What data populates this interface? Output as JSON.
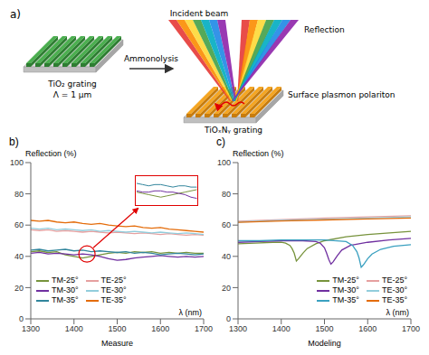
{
  "diagram": {
    "annotation": "a)",
    "left_label": "TiO₂ grating",
    "period_label": "Λ = 1 µm",
    "arrow_label": "Ammonolysis",
    "incident_label": "Incident beam",
    "reflection_label": "Reflection",
    "spp_label": "Surface plasmon polariton",
    "right_label": "TiOₓNᵧ grating"
  },
  "chart_data": [
    {
      "type": "line",
      "annotation": "b)",
      "y_label": "Reflection (%)",
      "x_label": "λ (nm)",
      "subtitle": "Measure",
      "legend": "lower left",
      "grid": false,
      "xlim": [
        1300,
        1700
      ],
      "xticks": [
        1300,
        1400,
        1500,
        1600,
        1700
      ],
      "ylim": [
        0,
        100
      ],
      "yticks": [
        0,
        20,
        40,
        60,
        80,
        100
      ],
      "x": [
        1300,
        1320,
        1340,
        1360,
        1380,
        1400,
        1420,
        1440,
        1460,
        1480,
        1500,
        1520,
        1540,
        1560,
        1580,
        1600,
        1620,
        1640,
        1660,
        1680,
        1700
      ],
      "series": [
        {
          "name": "TM-25°",
          "color": "#77933c",
          "values": [
            43,
            43.5,
            42.5,
            43,
            41,
            40,
            39,
            40,
            41,
            42,
            42.5,
            42,
            43,
            42.5,
            43,
            42,
            42.5,
            42,
            42.5,
            42,
            42
          ]
        },
        {
          "name": "TM-30°",
          "color": "#7030a0",
          "values": [
            42,
            42.5,
            41.5,
            42,
            41.5,
            41,
            41.5,
            41,
            40,
            38.5,
            37.5,
            38,
            39,
            39.5,
            40,
            40.5,
            40,
            39.5,
            40,
            39.5,
            40
          ]
        },
        {
          "name": "TM-35°",
          "color": "#31859c",
          "values": [
            44,
            44.5,
            43.5,
            44,
            44.5,
            43.5,
            44,
            43,
            43.5,
            43,
            42.5,
            43,
            42,
            42.5,
            42,
            41,
            41.5,
            42,
            41.5,
            41,
            41.5
          ]
        },
        {
          "name": "TE-25°",
          "color": "#e6a0a0",
          "values": [
            57,
            56.5,
            57,
            56,
            56.5,
            56,
            55.5,
            56,
            55.5,
            55,
            55.5,
            55,
            54.5,
            55,
            54.5,
            54,
            54.5,
            54,
            53.5,
            54,
            53.5
          ]
        },
        {
          "name": "TE-30°",
          "color": "#92cddc",
          "values": [
            58,
            57.5,
            58,
            57,
            57.5,
            57,
            56.5,
            57,
            56,
            56.5,
            56,
            55.5,
            56,
            55.5,
            55,
            55.5,
            55,
            54.5,
            55,
            54.5,
            54
          ]
        },
        {
          "name": "TE-35°",
          "color": "#e46c0a",
          "values": [
            63,
            62.5,
            63,
            62,
            61.5,
            62,
            61,
            60.5,
            61,
            60,
            59.5,
            59,
            59.5,
            58.5,
            58,
            58.5,
            57.5,
            57,
            56.5,
            56,
            55.5
          ]
        }
      ],
      "inset": {
        "type": "line",
        "tick_labels": false,
        "xlim": [
          1380,
          1480
        ],
        "ylim": [
          36,
          47
        ],
        "x": [
          1380,
          1390,
          1400,
          1410,
          1420,
          1430,
          1440,
          1450,
          1460,
          1470,
          1480
        ],
        "series": [
          {
            "name": "TM-25°",
            "color": "#77933c",
            "values": [
              41,
              40.5,
              40,
              39.5,
              39,
              39.5,
              40,
              40.5,
              41,
              41.5,
              42
            ]
          },
          {
            "name": "TM-30°",
            "color": "#7030a0",
            "values": [
              41.5,
              41,
              41,
              41.5,
              41.5,
              41,
              41,
              40.5,
              40,
              39,
              38.5
            ]
          },
          {
            "name": "TM-35°",
            "color": "#31859c",
            "values": [
              44.5,
              44,
              43.5,
              44,
              44,
              43.5,
              43,
              43.5,
              43.5,
              43,
              43
            ]
          }
        ]
      }
    },
    {
      "type": "line",
      "annotation": "c)",
      "y_label": "Reflection (%)",
      "x_label": "λ (nm)",
      "subtitle": "Modeling",
      "legend": "lower right",
      "grid": false,
      "xlim": [
        1300,
        1700
      ],
      "xticks": [
        1300,
        1400,
        1500,
        1600,
        1700
      ],
      "ylim": [
        0,
        100
      ],
      "yticks": [
        0,
        20,
        40,
        60,
        80,
        100
      ],
      "series": [
        {
          "name": "TM-25°",
          "color": "#77933c",
          "x": [
            1300,
            1340,
            1380,
            1400,
            1410,
            1420,
            1425,
            1430,
            1435,
            1440,
            1450,
            1460,
            1480,
            1500,
            1550,
            1600,
            1650,
            1700
          ],
          "values": [
            48,
            48.5,
            49,
            49,
            48.5,
            47,
            45,
            42,
            37,
            38.5,
            42,
            45,
            48,
            50,
            52.5,
            54,
            55,
            56
          ]
        },
        {
          "name": "TM-30°",
          "color": "#7030a0",
          "x": [
            1300,
            1350,
            1400,
            1450,
            1480,
            1490,
            1500,
            1505,
            1510,
            1515,
            1520,
            1530,
            1540,
            1560,
            1600,
            1650,
            1700
          ],
          "values": [
            49,
            49.5,
            50,
            50,
            49.5,
            48.5,
            45.5,
            42,
            38,
            35,
            36.5,
            40.5,
            44,
            47,
            49,
            50.5,
            51.5
          ]
        },
        {
          "name": "TM-35°",
          "color": "#3aa0c0",
          "x": [
            1300,
            1350,
            1400,
            1450,
            1500,
            1550,
            1565,
            1575,
            1580,
            1585,
            1590,
            1600,
            1610,
            1630,
            1660,
            1700
          ],
          "values": [
            50,
            50,
            50.5,
            50.5,
            50.5,
            49.5,
            47,
            43,
            39,
            33,
            34.5,
            38.5,
            41.5,
            44.5,
            46.5,
            47.5
          ]
        },
        {
          "name": "TE-25°",
          "color": "#e6a0a0",
          "x": [
            1300,
            1400,
            1500,
            1600,
            1700
          ],
          "values": [
            62.5,
            63.5,
            64.5,
            65.3,
            66
          ]
        },
        {
          "name": "TE-30°",
          "color": "#92cddc",
          "x": [
            1300,
            1400,
            1500,
            1600,
            1700
          ],
          "values": [
            62,
            63,
            63.8,
            64.5,
            65.2
          ]
        },
        {
          "name": "TE-35°",
          "color": "#e46c0a",
          "x": [
            1300,
            1400,
            1500,
            1600,
            1700
          ],
          "values": [
            61.8,
            62.6,
            63.3,
            63.9,
            64.5
          ]
        }
      ]
    }
  ]
}
